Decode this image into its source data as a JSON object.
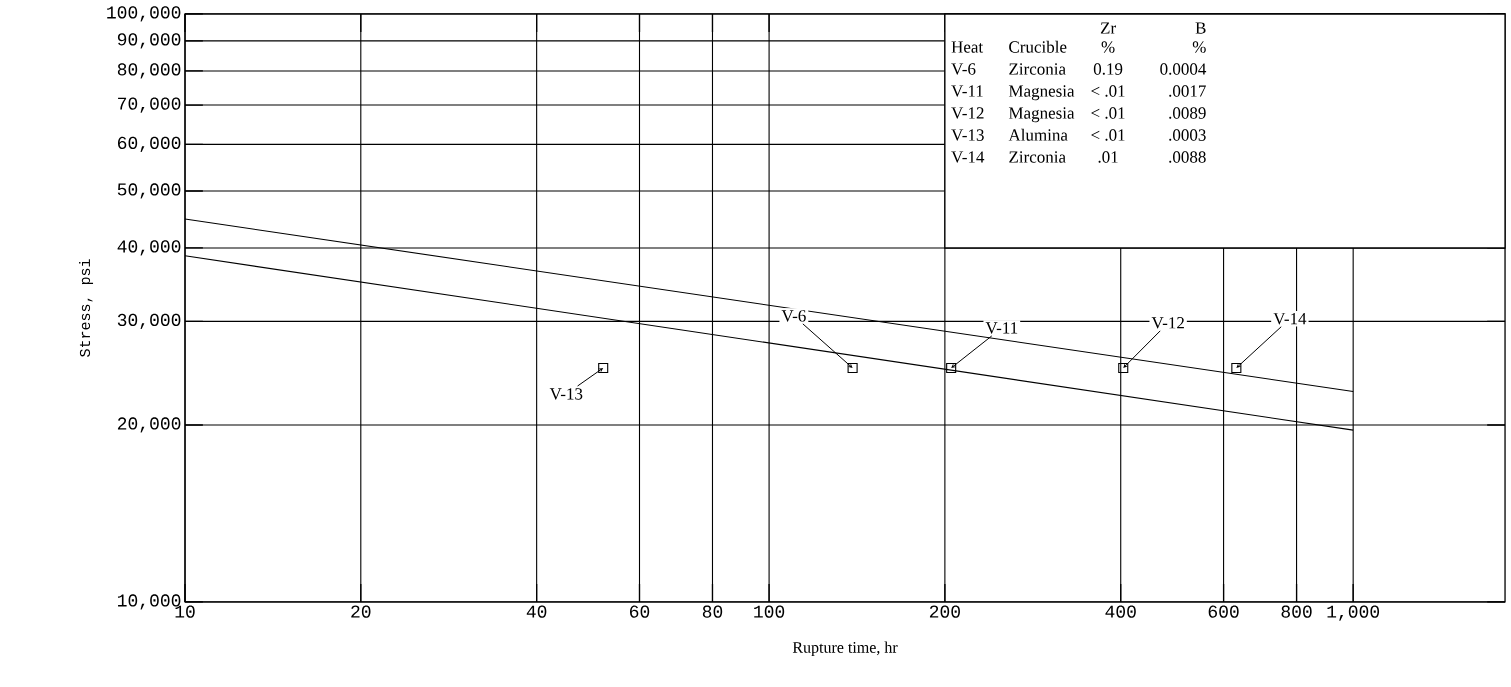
{
  "chart_data": {
    "type": "line",
    "xlabel": "Rupture time, hr",
    "ylabel": "Stress, psi",
    "log": "xy",
    "grid": true,
    "xlim": [
      10,
      1820
    ],
    "ylim": [
      10000,
      100000
    ],
    "xticks": [
      10,
      20,
      40,
      60,
      80,
      100,
      200,
      400,
      600,
      800,
      {
        "value": 1000,
        "label": "1,000"
      }
    ],
    "yticks": [
      {
        "value": 10000,
        "label": "10,000"
      },
      {
        "value": 20000,
        "label": "20,000"
      },
      {
        "value": 30000,
        "label": "30,000"
      },
      {
        "value": 40000,
        "label": "40,000"
      },
      {
        "value": 50000,
        "label": "50,000"
      },
      {
        "value": 60000,
        "label": "60,000"
      },
      {
        "value": 70000,
        "label": "70,000"
      },
      {
        "value": 80000,
        "label": "80,000"
      },
      {
        "value": 90000,
        "label": "90,000"
      },
      {
        "value": 100000,
        "label": "100,000"
      }
    ],
    "series": [
      {
        "color": "#000000",
        "marker": "none",
        "x": [
          10,
          1000
        ],
        "values": [
          44800,
          22800
        ]
      },
      {
        "color": "#000000",
        "marker": "none",
        "x": [
          10,
          1000
        ],
        "values": [
          38800,
          19600
        ]
      },
      {
        "type": "scatter",
        "color": "#000000",
        "marker": "square",
        "x": [
          139,
          205,
          404,
          631,
          52
        ],
        "values": [
          25000,
          25000,
          25000,
          25000,
          25000
        ]
      }
    ],
    "annotations": [
      {
        "text": "V-6",
        "x": 139,
        "y": 25000
      },
      {
        "text": "V-11",
        "x": 205,
        "y": 25000
      },
      {
        "text": "V-12",
        "x": 404,
        "y": 25000
      },
      {
        "text": "V-14",
        "x": 631,
        "y": 25000
      },
      {
        "text": "V-13",
        "x": 52,
        "y": 25000
      },
      "Zr",
      "B",
      "Heat",
      "Crucible",
      "%",
      "%",
      "V-6",
      "Zirconia",
      "0.19",
      "0.0004",
      "V-11",
      "Magnesia",
      "< .01",
      ".0017",
      "V-12",
      "Magnesia",
      "< .01",
      ".0089",
      "V-13",
      "Alumina",
      "< .01",
      ".0003",
      "V-14",
      "Zirconia",
      ".01",
      ".0088"
    ]
  }
}
